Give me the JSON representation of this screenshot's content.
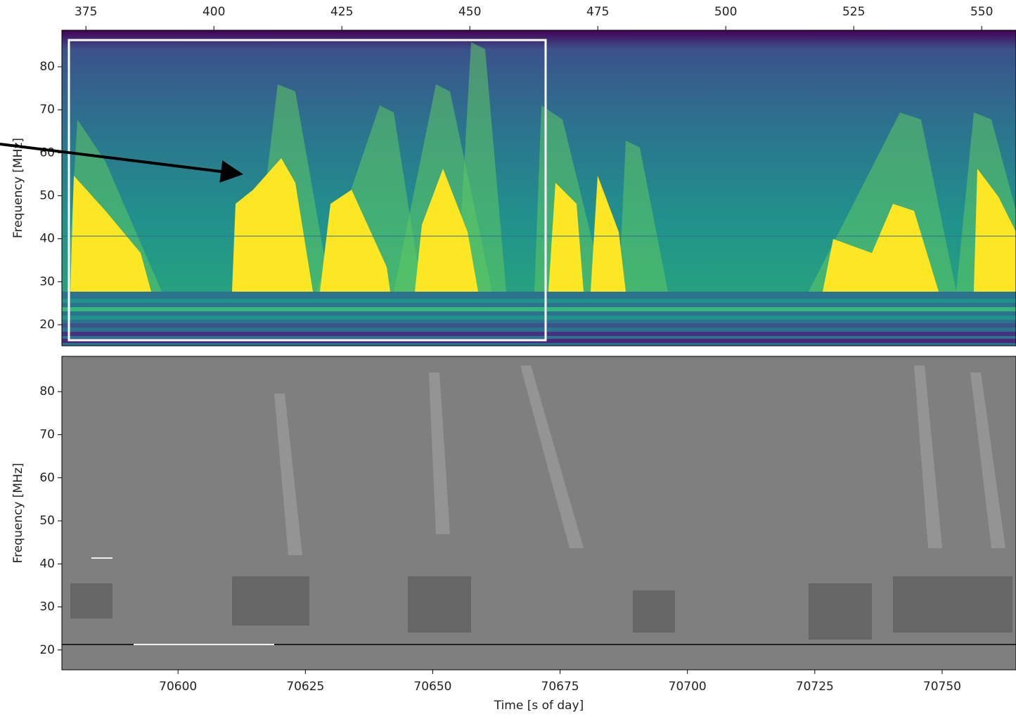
{
  "chart_data": [
    {
      "type": "heatmap",
      "colormap": "viridis",
      "xaxis_position": "top",
      "ylabel": "Frequency [MHz]",
      "xlim": [
        370.3,
        556.7
      ],
      "xticks": [
        375,
        400,
        425,
        450,
        475,
        500,
        525,
        550
      ],
      "ylim": [
        15.1,
        88.5
      ],
      "yticks": [
        20,
        30,
        40,
        50,
        60,
        70,
        80
      ]
    },
    {
      "type": "heatmap",
      "colormap": "gray",
      "xaxis_position": "bottom",
      "xlabel": "Time [s of day]",
      "ylabel": "Frequency [MHz]",
      "xlim": [
        70577.2,
        70764.5
      ],
      "xticks": [
        70600,
        70625,
        70650,
        70675,
        70700,
        70725,
        70750
      ],
      "ylim": [
        15.4,
        88.2
      ],
      "yticks": [
        20,
        30,
        40,
        50,
        60,
        70,
        80
      ]
    }
  ]
}
